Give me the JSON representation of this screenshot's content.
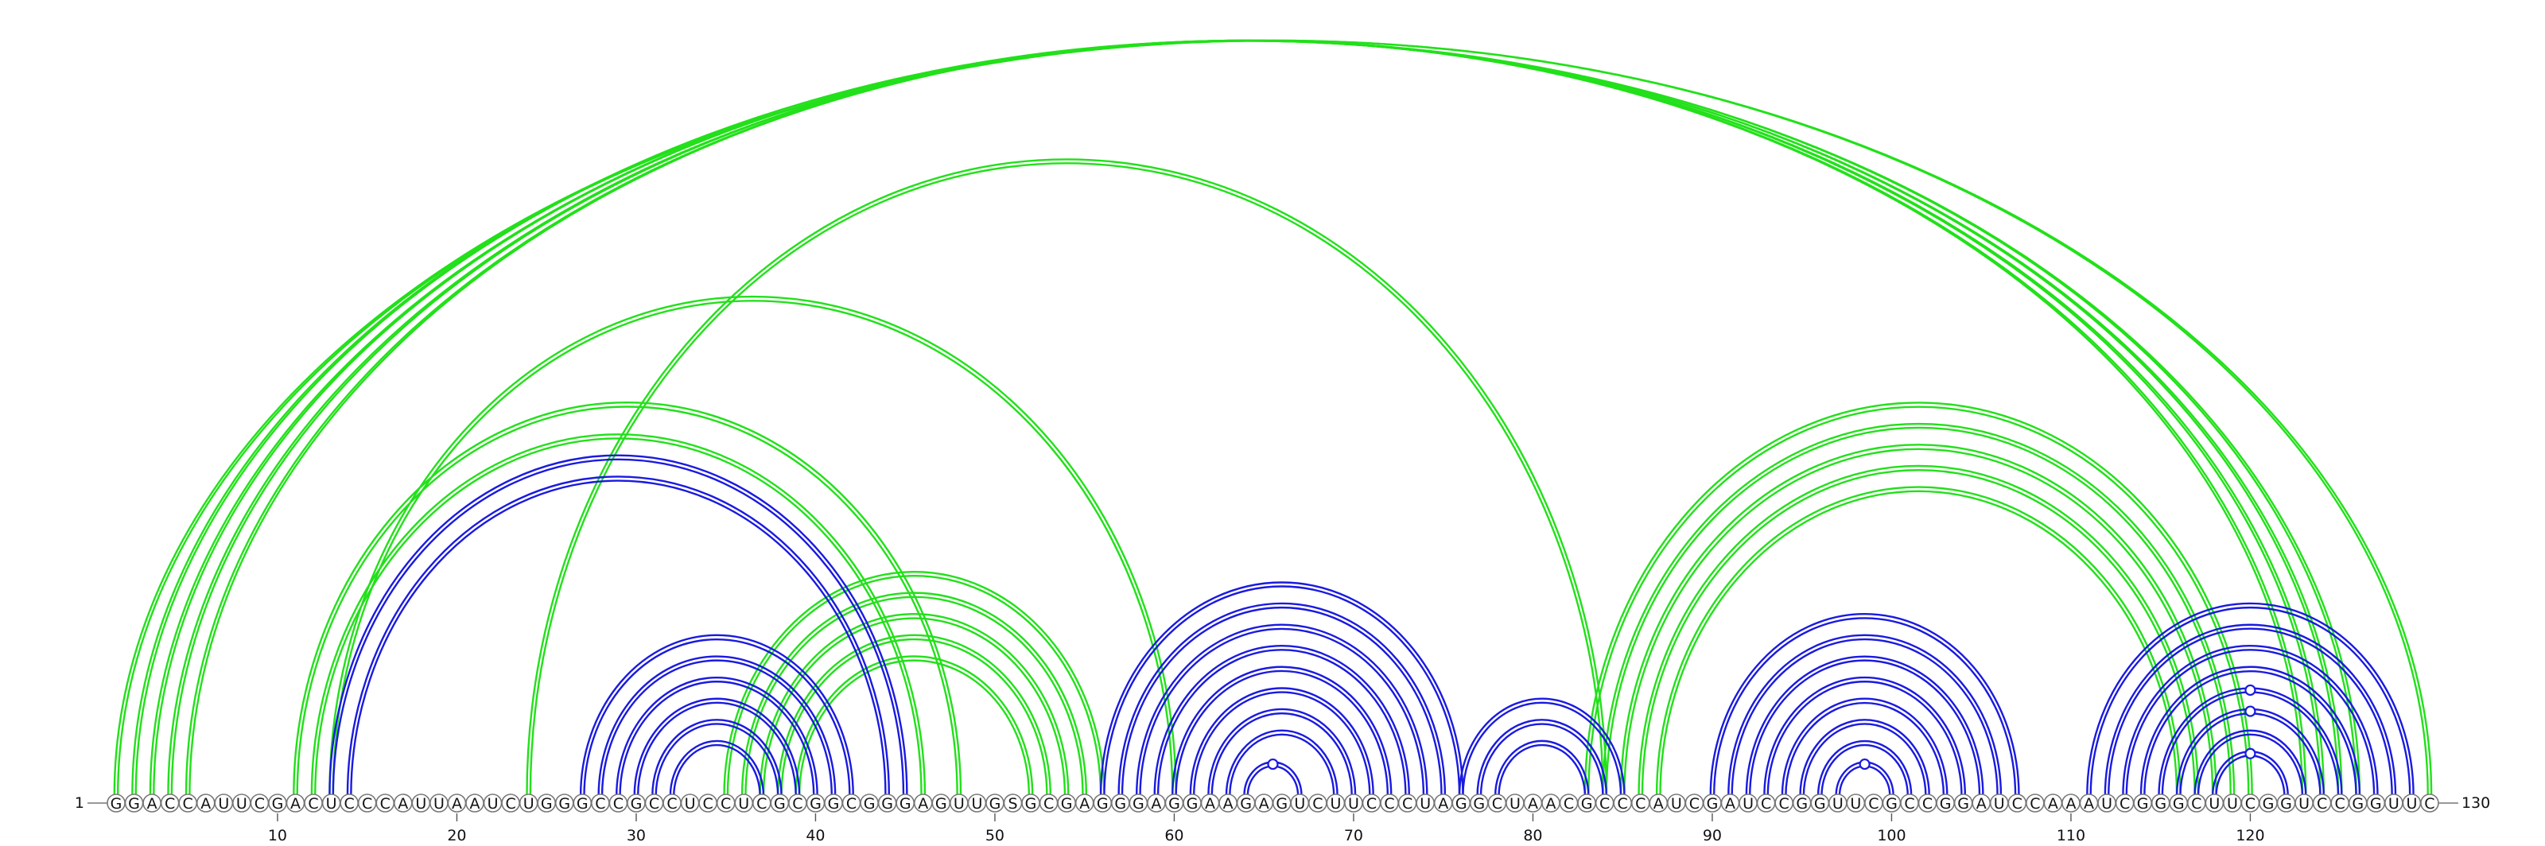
{
  "sequence": "GGACCAUUCGACUCCCAUUAAUCUGGGCCGCCUCCUCGCGGCGGGAGUUGSGCGAGGGAGGAAGAGUCUUCCCUAGGCUAACGCCCAUCGAUCCGGUUCGCCGGAUCCAAAUCGGGCUUCGGUCCGGUUC",
  "start_label": "1",
  "end_label": "130",
  "ticks": [
    "10",
    "20",
    "30",
    "40",
    "50",
    "60",
    "70",
    "80",
    "90",
    "100",
    "110",
    "120"
  ],
  "colors": {
    "blue": "#1a1adf",
    "green": "#22e01a"
  },
  "pairs": {
    "green": [
      [
        1,
        130
      ],
      [
        2,
        126
      ],
      [
        3,
        125
      ],
      [
        4,
        124
      ],
      [
        5,
        123
      ],
      [
        11,
        48
      ],
      [
        12,
        46
      ],
      [
        13,
        60
      ],
      [
        24,
        84
      ],
      [
        35,
        56
      ],
      [
        36,
        55
      ],
      [
        37,
        54
      ],
      [
        38,
        53
      ],
      [
        39,
        52
      ],
      [
        83,
        120
      ],
      [
        84,
        119
      ],
      [
        85,
        118
      ],
      [
        86,
        117
      ],
      [
        87,
        116
      ]
    ],
    "blue": [
      [
        13,
        45
      ],
      [
        14,
        44
      ],
      [
        27,
        42
      ],
      [
        28,
        41
      ],
      [
        29,
        40
      ],
      [
        30,
        39
      ],
      [
        31,
        38
      ],
      [
        32,
        37
      ],
      [
        56,
        76
      ],
      [
        57,
        75
      ],
      [
        58,
        74
      ],
      [
        59,
        73
      ],
      [
        60,
        72
      ],
      [
        61,
        71
      ],
      [
        62,
        70
      ],
      [
        63,
        69
      ],
      [
        64,
        67
      ],
      [
        76,
        85
      ],
      [
        77,
        84
      ],
      [
        78,
        83
      ],
      [
        90,
        107
      ],
      [
        91,
        106
      ],
      [
        92,
        105
      ],
      [
        93,
        104
      ],
      [
        94,
        103
      ],
      [
        95,
        102
      ],
      [
        96,
        101
      ],
      [
        97,
        100
      ],
      [
        111,
        129
      ],
      [
        112,
        128
      ],
      [
        113,
        127
      ],
      [
        114,
        126
      ],
      [
        115,
        125
      ],
      [
        116,
        124
      ],
      [
        117,
        123
      ],
      [
        118,
        122
      ]
    ]
  },
  "gu_pairs": [
    [
      64,
      67
    ],
    [
      97,
      100
    ],
    [
      115,
      125
    ],
    [
      116,
      124
    ],
    [
      118,
      122
    ]
  ]
}
